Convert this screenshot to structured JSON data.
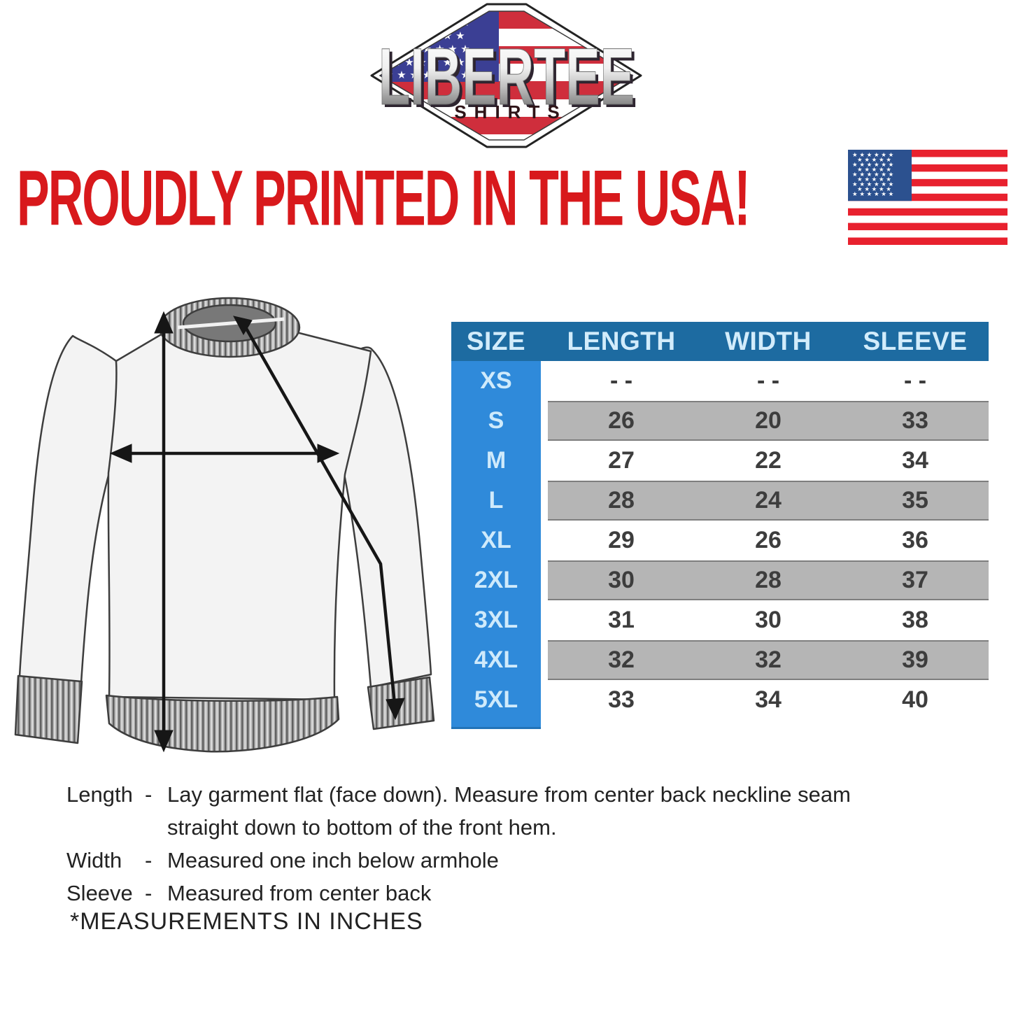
{
  "brand": {
    "name": "LIBERTEE",
    "sub": "SHIRTS"
  },
  "headline": {
    "text": "PROUDLY PRINTED IN THE USA!"
  },
  "flag": {
    "stars_row_6": "★ ★ ★ ★ ★ ★",
    "stars_row_5": "★ ★ ★ ★ ★",
    "stars_row_7": "★ ★ ★ ★ ★ ★ ★"
  },
  "size_chart": {
    "columns": [
      "SIZE",
      "LENGTH",
      "WIDTH",
      "SLEEVE"
    ],
    "rows": [
      {
        "size": "XS",
        "length": "- -",
        "width": "- -",
        "sleeve": "- -"
      },
      {
        "size": "S",
        "length": "26",
        "width": "20",
        "sleeve": "33"
      },
      {
        "size": "M",
        "length": "27",
        "width": "22",
        "sleeve": "34"
      },
      {
        "size": "L",
        "length": "28",
        "width": "24",
        "sleeve": "35"
      },
      {
        "size": "XL",
        "length": "29",
        "width": "26",
        "sleeve": "36"
      },
      {
        "size": "2XL",
        "length": "30",
        "width": "28",
        "sleeve": "37"
      },
      {
        "size": "3XL",
        "length": "31",
        "width": "30",
        "sleeve": "38"
      },
      {
        "size": "4XL",
        "length": "32",
        "width": "32",
        "sleeve": "39"
      },
      {
        "size": "5XL",
        "length": "33",
        "width": "34",
        "sleeve": "40"
      }
    ]
  },
  "notes": [
    {
      "term": "Length",
      "sep": "-",
      "desc": "Lay garment flat (face down). Measure from center back neckline seam straight down to bottom of the front hem."
    },
    {
      "term": "Width",
      "sep": "-",
      "desc": "Measured one inch below armhole"
    },
    {
      "term": "Sleeve",
      "sep": "-",
      "desc": "Measured from center back"
    }
  ],
  "footnote": "*MEASUREMENTS IN INCHES",
  "colors": {
    "headline_red": "#d8191c",
    "header_blue": "#1d6ba1",
    "size_col_blue": "#2f8ada",
    "row_gray": "#b5b5b5",
    "row_border_gray": "#7e7e7e",
    "table_text": "#3d3d3d",
    "header_text": "#d2ecfb",
    "flag_red": "#e8212e",
    "flag_blue": "#2c518f",
    "badge_red": "#cf2e3c",
    "badge_blue": "#3b3f94"
  },
  "chart_data": {
    "type": "table",
    "title": "Garment size chart (measurements in inches)",
    "columns": [
      "SIZE",
      "LENGTH",
      "WIDTH",
      "SLEEVE"
    ],
    "rows": [
      [
        "XS",
        null,
        null,
        null
      ],
      [
        "S",
        26,
        20,
        33
      ],
      [
        "M",
        27,
        22,
        34
      ],
      [
        "L",
        28,
        24,
        35
      ],
      [
        "XL",
        29,
        26,
        36
      ],
      [
        "2XL",
        30,
        28,
        37
      ],
      [
        "3XL",
        31,
        30,
        38
      ],
      [
        "4XL",
        32,
        32,
        39
      ],
      [
        "5XL",
        33,
        34,
        40
      ]
    ]
  }
}
